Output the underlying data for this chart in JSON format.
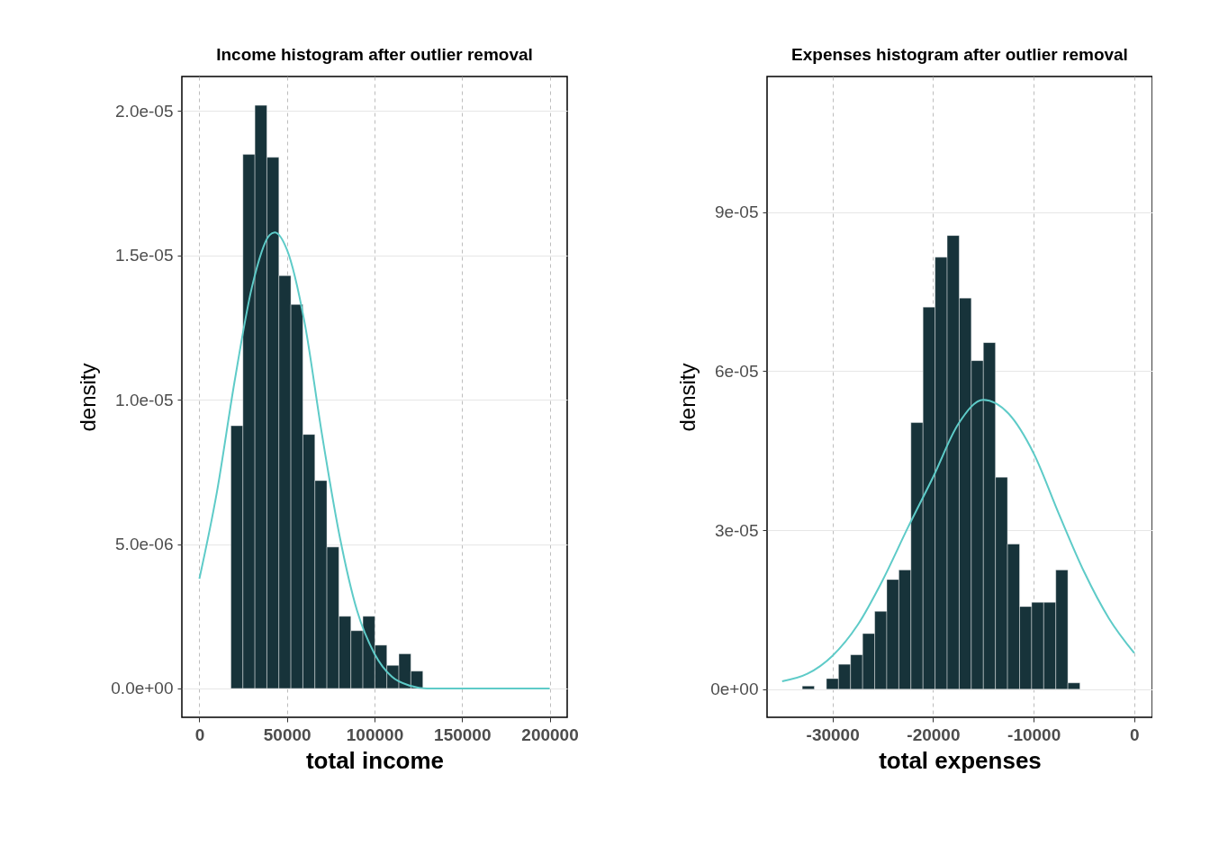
{
  "chart_data": [
    {
      "type": "histogram",
      "title": "Income histogram after outlier removal",
      "xlabel": "total income",
      "ylabel": "density",
      "color": "#17333a",
      "bins": [
        18000,
        24850,
        31700,
        38550,
        45400,
        52250,
        59100,
        65950,
        72800,
        79650,
        86500,
        93350,
        100200,
        107050,
        113900,
        120750,
        127600
      ],
      "values": [
        9.1e-06,
        1.85e-05,
        2.02e-05,
        1.84e-05,
        1.43e-05,
        1.33e-05,
        8.8e-06,
        7.2e-06,
        4.9e-06,
        2.5e-06,
        2e-06,
        2.5e-06,
        1.5e-06,
        8e-07,
        1.2e-06,
        6e-07
      ],
      "series": [
        {
          "type": "line",
          "color": "#5ecbc8",
          "x": [
            0,
            10000,
            20000,
            30000,
            40000,
            43000,
            50000,
            60000,
            70000,
            80000,
            90000,
            100000,
            110000,
            120000,
            130000,
            140000,
            150000,
            160000,
            170000,
            180000,
            190000,
            200000
          ],
          "values": [
            3.8e-06,
            6.8e-06,
            1.06e-05,
            1.39e-05,
            1.57e-05,
            1.58e-05,
            1.52e-05,
            1.27e-05,
            8.8e-06,
            5.3e-06,
            2.7e-06,
            1.2e-06,
            4e-07,
            1e-07,
            0,
            0,
            0,
            0,
            0,
            0,
            0,
            0
          ]
        }
      ],
      "xlim": [
        -10000,
        210000
      ],
      "ylim": [
        -1e-06,
        2.12e-05
      ],
      "xticks": [
        0,
        50000,
        100000,
        150000,
        200000
      ],
      "yticks": [
        {
          "value": 0,
          "label": "0.0e+00"
        },
        {
          "value": 5e-06,
          "label": "5.0e-06"
        },
        {
          "value": 1e-05,
          "label": "1.0e-05"
        },
        {
          "value": 1.5e-05,
          "label": "1.5e-05"
        },
        {
          "value": 2e-05,
          "label": "2.0e-05"
        }
      ],
      "grid": true
    },
    {
      "type": "histogram",
      "title": "Expenses histogram after outlier removal",
      "xlabel": "total expenses",
      "ylabel": "density",
      "color": "#17333a",
      "bins": [
        -33000,
        -31800,
        -30600,
        -29400,
        -28200,
        -27000,
        -25800,
        -24600,
        -23400,
        -22200,
        -21000,
        -19800,
        -18600,
        -17400,
        -16200,
        -15000,
        -13800,
        -12600,
        -11400,
        -10200,
        -9000,
        -7800,
        -6600,
        -5400
      ],
      "values": [
        6e-07,
        0,
        2e-06,
        4.7e-06,
        6.5e-06,
        1.05e-05,
        1.47e-05,
        2.07e-05,
        2.25e-05,
        5.03e-05,
        7.21e-05,
        8.15e-05,
        8.56e-05,
        7.38e-05,
        6.2e-05,
        6.54e-05,
        4e-05,
        2.74e-05,
        1.56e-05,
        1.64e-05,
        1.64e-05,
        2.25e-05,
        1.2e-06
      ],
      "series": [
        {
          "type": "line",
          "color": "#5ecbc8",
          "x": [
            -35000,
            -32500,
            -30000,
            -27500,
            -25000,
            -22500,
            -20000,
            -17500,
            -15000,
            -12500,
            -10000,
            -7500,
            -5000,
            -2500,
            0
          ],
          "values": [
            1.5e-06,
            2.9e-06,
            6.3e-06,
            1.21e-05,
            2.06e-05,
            3.05e-05,
            4e-05,
            5e-05,
            5.46e-05,
            5.2e-05,
            4.45e-05,
            3.31e-05,
            2.22e-05,
            1.33e-05,
            6.8e-06
          ]
        }
      ],
      "xlim": [
        -36500,
        1800
      ],
      "ylim": [
        -5.3e-06,
        0.0001156
      ],
      "xticks": [
        -30000,
        -20000,
        -10000,
        0
      ],
      "yticks": [
        {
          "value": 0,
          "label": "0e+00"
        },
        {
          "value": 3e-05,
          "label": "3e-05"
        },
        {
          "value": 6e-05,
          "label": "6e-05"
        },
        {
          "value": 9e-05,
          "label": "9e-05"
        }
      ],
      "grid": true
    }
  ]
}
